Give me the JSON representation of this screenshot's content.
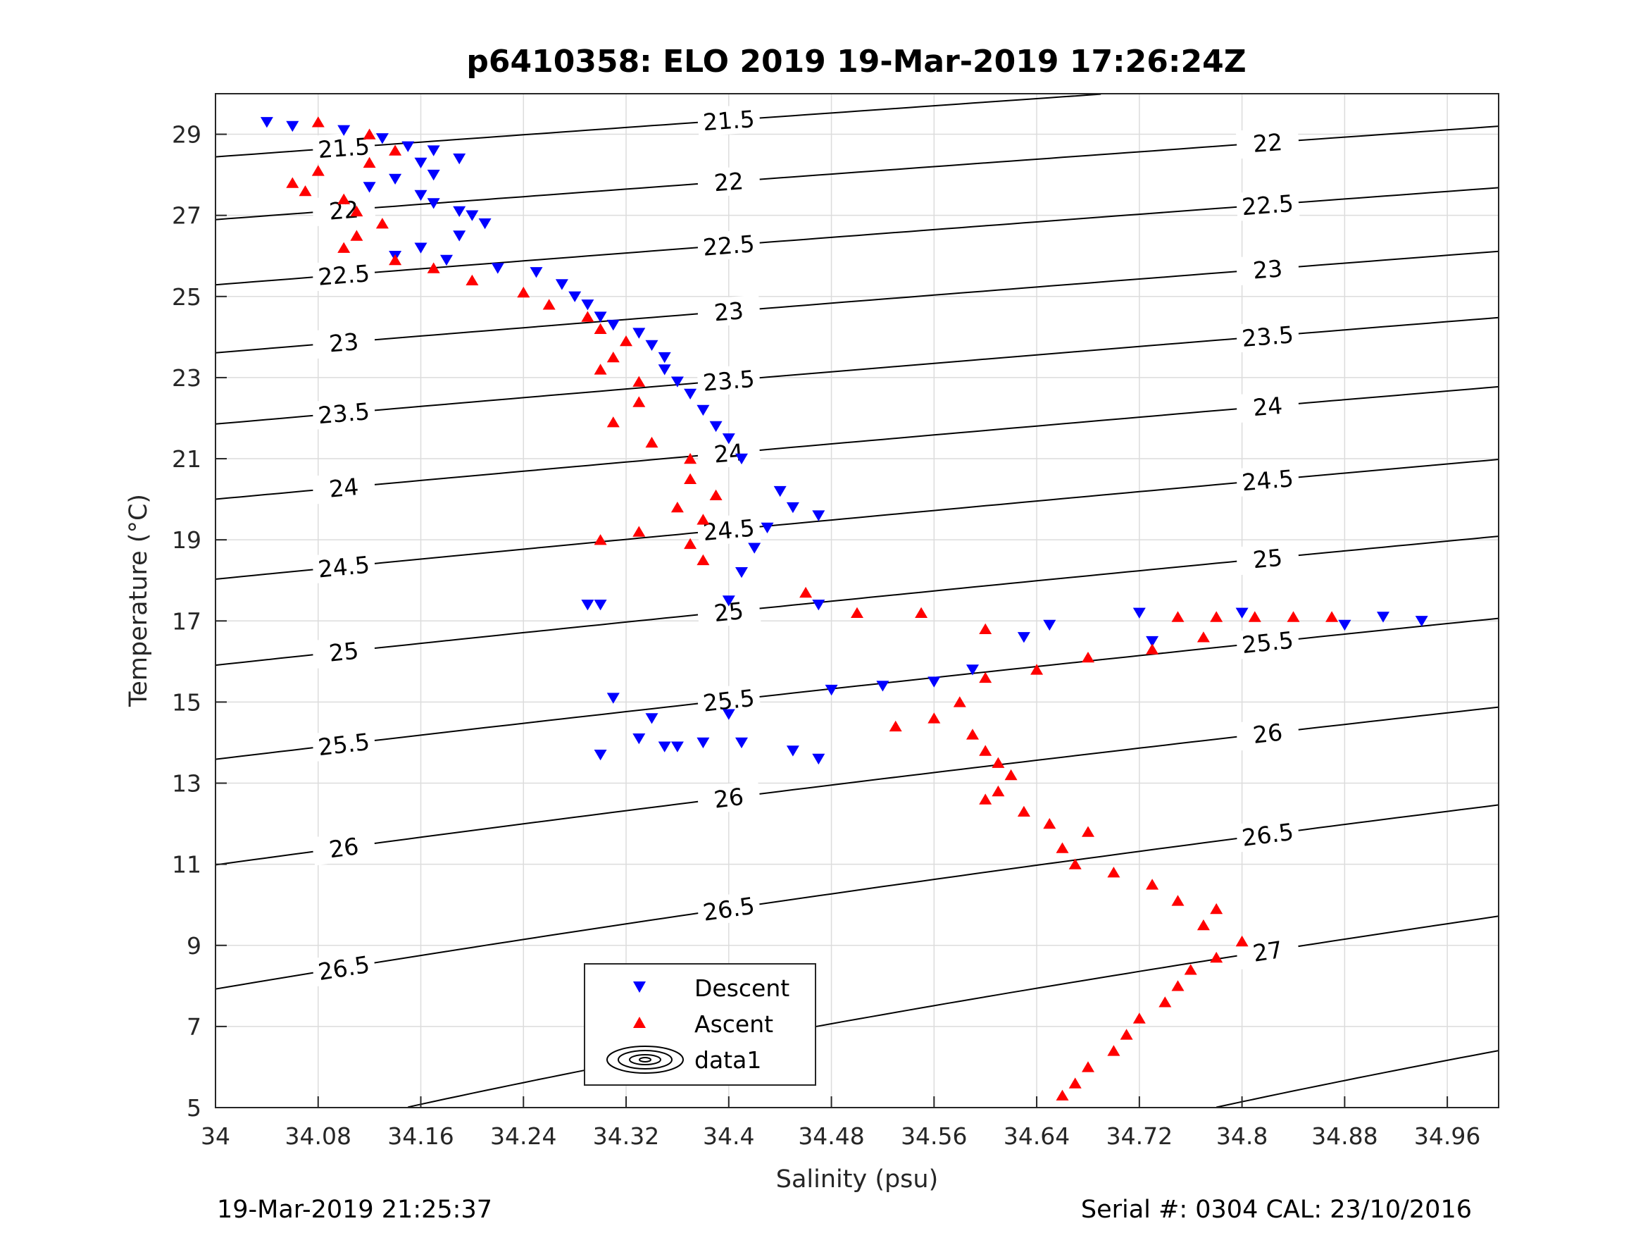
{
  "chart_data": {
    "type": "scatter",
    "title": "p6410358: ELO 2019 19-Mar-2019 17:26:24Z",
    "xlabel": "Salinity (psu)",
    "ylabel": "Temperature (°C)",
    "xlim": [
      34.0,
      35.0
    ],
    "ylim": [
      5,
      30
    ],
    "x_ticks": [
      "34",
      "34.08",
      "34.16",
      "34.24",
      "34.32",
      "34.4",
      "34.48",
      "34.56",
      "34.64",
      "34.72",
      "34.8",
      "34.88",
      "34.96"
    ],
    "y_ticks": [
      "5",
      "7",
      "9",
      "11",
      "13",
      "15",
      "17",
      "19",
      "21",
      "23",
      "25",
      "27",
      "29"
    ],
    "grid": true,
    "legend_position": "bottom-center",
    "density_contours": {
      "levels": [
        "21.5",
        "22",
        "22.5",
        "23",
        "23.5",
        "24",
        "24.5",
        "25",
        "25.5",
        "26",
        "26.5",
        "27",
        "27.5"
      ],
      "color": "#000000"
    },
    "series": [
      {
        "name": "Descent",
        "marker": "triangle-down",
        "color": "#0000ff",
        "points": [
          [
            34.04,
            29.3
          ],
          [
            34.06,
            29.2
          ],
          [
            34.1,
            29.1
          ],
          [
            34.13,
            28.9
          ],
          [
            34.15,
            28.7
          ],
          [
            34.17,
            28.6
          ],
          [
            34.19,
            28.4
          ],
          [
            34.16,
            28.3
          ],
          [
            34.17,
            28.0
          ],
          [
            34.14,
            27.9
          ],
          [
            34.12,
            27.7
          ],
          [
            34.16,
            27.5
          ],
          [
            34.17,
            27.3
          ],
          [
            34.19,
            27.1
          ],
          [
            34.2,
            27.0
          ],
          [
            34.21,
            26.8
          ],
          [
            34.19,
            26.5
          ],
          [
            34.16,
            26.2
          ],
          [
            34.14,
            26.0
          ],
          [
            34.18,
            25.9
          ],
          [
            34.22,
            25.7
          ],
          [
            34.25,
            25.6
          ],
          [
            34.27,
            25.3
          ],
          [
            34.28,
            25.0
          ],
          [
            34.29,
            24.8
          ],
          [
            34.3,
            24.5
          ],
          [
            34.31,
            24.3
          ],
          [
            34.33,
            24.1
          ],
          [
            34.34,
            23.8
          ],
          [
            34.35,
            23.5
          ],
          [
            34.35,
            23.2
          ],
          [
            34.36,
            22.9
          ],
          [
            34.37,
            22.6
          ],
          [
            34.38,
            22.2
          ],
          [
            34.39,
            21.8
          ],
          [
            34.4,
            21.5
          ],
          [
            34.41,
            21.0
          ],
          [
            34.44,
            20.2
          ],
          [
            34.45,
            19.8
          ],
          [
            34.47,
            19.6
          ],
          [
            34.43,
            19.3
          ],
          [
            34.42,
            18.8
          ],
          [
            34.41,
            18.2
          ],
          [
            34.4,
            17.5
          ],
          [
            34.29,
            17.4
          ],
          [
            34.3,
            17.4
          ],
          [
            34.47,
            17.4
          ],
          [
            34.65,
            16.9
          ],
          [
            34.63,
            16.6
          ],
          [
            34.72,
            17.2
          ],
          [
            34.73,
            16.5
          ],
          [
            34.8,
            17.2
          ],
          [
            34.88,
            16.9
          ],
          [
            34.91,
            17.1
          ],
          [
            34.94,
            17.0
          ],
          [
            34.59,
            15.8
          ],
          [
            34.56,
            15.5
          ],
          [
            34.52,
            15.4
          ],
          [
            34.48,
            15.3
          ],
          [
            34.31,
            15.1
          ],
          [
            34.34,
            14.6
          ],
          [
            34.33,
            14.1
          ],
          [
            34.35,
            13.9
          ],
          [
            34.36,
            13.9
          ],
          [
            34.38,
            14.0
          ],
          [
            34.4,
            14.7
          ],
          [
            34.41,
            14.0
          ],
          [
            34.45,
            13.8
          ],
          [
            34.47,
            13.6
          ],
          [
            34.3,
            13.7
          ]
        ]
      },
      {
        "name": "Ascent",
        "marker": "triangle-up",
        "color": "#ff0000",
        "points": [
          [
            34.08,
            29.3
          ],
          [
            34.12,
            29.0
          ],
          [
            34.14,
            28.6
          ],
          [
            34.12,
            28.3
          ],
          [
            34.08,
            28.1
          ],
          [
            34.06,
            27.8
          ],
          [
            34.07,
            27.6
          ],
          [
            34.1,
            27.4
          ],
          [
            34.11,
            27.1
          ],
          [
            34.13,
            26.8
          ],
          [
            34.11,
            26.5
          ],
          [
            34.1,
            26.2
          ],
          [
            34.14,
            25.9
          ],
          [
            34.17,
            25.7
          ],
          [
            34.2,
            25.4
          ],
          [
            34.24,
            25.1
          ],
          [
            34.26,
            24.8
          ],
          [
            34.29,
            24.5
          ],
          [
            34.3,
            24.2
          ],
          [
            34.32,
            23.9
          ],
          [
            34.31,
            23.5
          ],
          [
            34.3,
            23.2
          ],
          [
            34.33,
            22.9
          ],
          [
            34.33,
            22.4
          ],
          [
            34.31,
            21.9
          ],
          [
            34.34,
            21.4
          ],
          [
            34.37,
            21.0
          ],
          [
            34.37,
            20.5
          ],
          [
            34.39,
            20.1
          ],
          [
            34.36,
            19.8
          ],
          [
            34.38,
            19.5
          ],
          [
            34.33,
            19.2
          ],
          [
            34.3,
            19.0
          ],
          [
            34.37,
            18.9
          ],
          [
            34.38,
            18.5
          ],
          [
            34.46,
            17.7
          ],
          [
            34.5,
            17.2
          ],
          [
            34.55,
            17.2
          ],
          [
            34.6,
            16.8
          ],
          [
            34.56,
            14.6
          ],
          [
            34.53,
            14.4
          ],
          [
            34.58,
            15.0
          ],
          [
            34.59,
            14.2
          ],
          [
            34.6,
            13.8
          ],
          [
            34.61,
            13.5
          ],
          [
            34.62,
            13.2
          ],
          [
            34.61,
            12.8
          ],
          [
            34.6,
            12.6
          ],
          [
            34.63,
            12.3
          ],
          [
            34.65,
            12.0
          ],
          [
            34.68,
            11.8
          ],
          [
            34.66,
            11.4
          ],
          [
            34.67,
            11.0
          ],
          [
            34.7,
            10.8
          ],
          [
            34.73,
            10.5
          ],
          [
            34.75,
            10.1
          ],
          [
            34.78,
            9.9
          ],
          [
            34.77,
            9.5
          ],
          [
            34.8,
            9.1
          ],
          [
            34.78,
            8.7
          ],
          [
            34.76,
            8.4
          ],
          [
            34.75,
            8.0
          ],
          [
            34.74,
            7.6
          ],
          [
            34.72,
            7.2
          ],
          [
            34.71,
            6.8
          ],
          [
            34.7,
            6.4
          ],
          [
            34.68,
            6.0
          ],
          [
            34.67,
            5.6
          ],
          [
            34.66,
            5.3
          ],
          [
            34.75,
            17.1
          ],
          [
            34.78,
            17.1
          ],
          [
            34.81,
            17.1
          ],
          [
            34.84,
            17.1
          ],
          [
            34.87,
            17.1
          ],
          [
            34.73,
            16.3
          ],
          [
            34.68,
            16.1
          ],
          [
            34.64,
            15.8
          ],
          [
            34.6,
            15.6
          ],
          [
            34.77,
            16.6
          ]
        ]
      },
      {
        "name": "data1",
        "marker": "contour-ellipse",
        "color": "#000000"
      }
    ]
  },
  "footer": {
    "left": "19-Mar-2019 21:25:37",
    "right": "Serial #: 0304  CAL: 23/10/2016"
  }
}
